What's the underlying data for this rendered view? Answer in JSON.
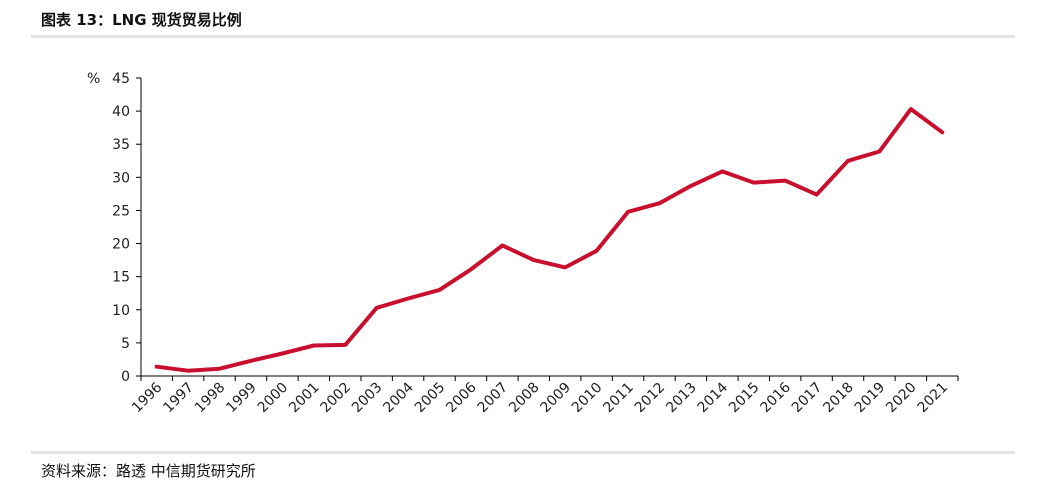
{
  "figure": {
    "title": "图表 13：LNG 现货贸易比例",
    "source": "资料来源：路透 中信期货研究所"
  },
  "colors": {
    "line": "#c8102e",
    "axis": "#000000",
    "rule": "#e3e3e3"
  },
  "chart_data": {
    "type": "line",
    "title": "",
    "ylabel": "%",
    "xlabel": "",
    "categories": [
      "1996",
      "1997",
      "1998",
      "1999",
      "2000",
      "2001",
      "2002",
      "2003",
      "2004",
      "2005",
      "2006",
      "2007",
      "2008",
      "2009",
      "2010",
      "2011",
      "2012",
      "2013",
      "2014",
      "2015",
      "2016",
      "2017",
      "2018",
      "2019",
      "2020",
      "2021"
    ],
    "series": [
      {
        "values": [
          1.4,
          0.8,
          1.1,
          2.3,
          3.4,
          4.6,
          4.7,
          10.3,
          11.7,
          13.0,
          16.1,
          19.7,
          17.5,
          16.4,
          18.9,
          24.8,
          26.1,
          28.7,
          30.9,
          29.2,
          29.5,
          27.4,
          32.5,
          33.9,
          40.3,
          36.8
        ]
      }
    ],
    "ylim": [
      0,
      45
    ],
    "yticks": [
      0,
      5,
      10,
      15,
      20,
      25,
      30,
      35,
      40,
      45
    ],
    "grid": false,
    "legend": "none"
  }
}
